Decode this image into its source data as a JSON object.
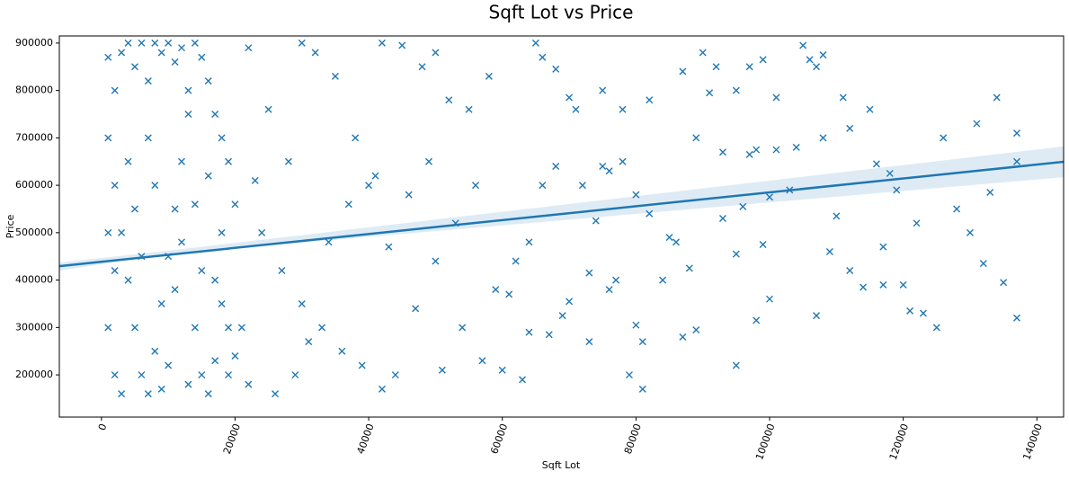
{
  "chart_data": {
    "type": "scatter",
    "title": "Sqft Lot vs Price",
    "x_label": "Sqft Lot",
    "y_label": "Price",
    "color": "#1f77b4",
    "marker": "x",
    "xlim": [
      -6300,
      144000
    ],
    "ylim": [
      111000,
      915000
    ],
    "xticks": [
      0,
      20000,
      40000,
      60000,
      80000,
      100000,
      120000,
      140000
    ],
    "yticks": [
      200000,
      300000,
      400000,
      500000,
      600000,
      700000,
      800000,
      900000
    ],
    "x": [
      1000,
      2000,
      3000,
      4000,
      5000,
      6000,
      7000,
      8000,
      9000,
      10000,
      11000,
      12000,
      13000,
      14000,
      15000,
      16000,
      17000,
      18000,
      19000,
      1000,
      2000,
      3000,
      4000,
      5000,
      6000,
      7000,
      8000,
      9000,
      10000,
      11000,
      12000,
      13000,
      14000,
      15000,
      16000,
      17000,
      18000,
      19000,
      1000,
      2000,
      3000,
      4000,
      5000,
      6000,
      7000,
      8000,
      9000,
      10000,
      11000,
      12000,
      13000,
      14000,
      15000,
      16000,
      17000,
      18000,
      19000,
      1000,
      2000,
      20000,
      20000,
      22000,
      25000,
      28000,
      30000,
      32000,
      35000,
      38000,
      40000,
      42000,
      45000,
      48000,
      50000,
      52000,
      55000,
      58000,
      24000,
      27000,
      30000,
      33000,
      36000,
      39000,
      42000,
      44000,
      47000,
      50000,
      53000,
      56000,
      59000,
      57000,
      54000,
      26000,
      29000,
      31000,
      34000,
      37000,
      41000,
      43000,
      46000,
      49000,
      51000,
      21000,
      23000,
      22000,
      65000,
      66000,
      68000,
      90000,
      92000,
      97000,
      99000,
      105000,
      106000,
      108000,
      107000,
      87000,
      111000,
      101000,
      95000,
      91000,
      75000,
      71000,
      70000,
      82000,
      78000,
      89000,
      93000,
      97000,
      98000,
      101000,
      104000,
      108000,
      112000,
      115000,
      126000,
      131000,
      134000,
      137000,
      137000,
      116000,
      118000,
      119000,
      103000,
      100000,
      96000,
      93000,
      110000,
      122000,
      128000,
      130000,
      133000,
      99000,
      95000,
      109000,
      112000,
      114000,
      117000,
      117000,
      120000,
      121000,
      123000,
      125000,
      132000,
      135000,
      137000,
      107000,
      100000,
      98000,
      95000,
      88000,
      89000,
      87000,
      81000,
      80000,
      81000,
      79000,
      85000,
      86000,
      84000,
      77000,
      76000,
      73000,
      73000,
      70000,
      69000,
      67000,
      64000,
      63000,
      60000,
      61000,
      62000,
      64000,
      66000,
      68000,
      72000,
      75000,
      76000,
      78000,
      80000,
      82000,
      74000
    ],
    "values": [
      870000,
      800000,
      880000,
      900000,
      850000,
      900000,
      820000,
      900000,
      880000,
      900000,
      860000,
      890000,
      800000,
      900000,
      870000,
      820000,
      750000,
      700000,
      650000,
      700000,
      600000,
      500000,
      400000,
      300000,
      200000,
      160000,
      250000,
      350000,
      450000,
      550000,
      650000,
      750000,
      300000,
      200000,
      160000,
      400000,
      500000,
      300000,
      300000,
      200000,
      160000,
      650000,
      550000,
      450000,
      700000,
      600000,
      170000,
      220000,
      380000,
      480000,
      180000,
      560000,
      420000,
      620000,
      230000,
      350000,
      200000,
      500000,
      420000,
      560000,
      240000,
      890000,
      760000,
      650000,
      900000,
      880000,
      830000,
      700000,
      600000,
      900000,
      895000,
      850000,
      880000,
      780000,
      760000,
      830000,
      500000,
      420000,
      350000,
      300000,
      250000,
      220000,
      170000,
      200000,
      340000,
      440000,
      520000,
      600000,
      380000,
      230000,
      300000,
      160000,
      200000,
      270000,
      480000,
      560000,
      620000,
      470000,
      580000,
      650000,
      210000,
      300000,
      610000,
      180000,
      900000,
      870000,
      845000,
      880000,
      850000,
      850000,
      865000,
      895000,
      865000,
      875000,
      850000,
      840000,
      785000,
      785000,
      800000,
      795000,
      800000,
      760000,
      785000,
      780000,
      760000,
      700000,
      670000,
      665000,
      675000,
      675000,
      680000,
      700000,
      720000,
      760000,
      700000,
      730000,
      785000,
      710000,
      650000,
      645000,
      625000,
      590000,
      590000,
      575000,
      555000,
      530000,
      535000,
      520000,
      550000,
      500000,
      585000,
      475000,
      455000,
      460000,
      420000,
      385000,
      470000,
      390000,
      390000,
      335000,
      330000,
      300000,
      435000,
      395000,
      320000,
      325000,
      360000,
      315000,
      220000,
      425000,
      295000,
      280000,
      270000,
      305000,
      170000,
      200000,
      490000,
      480000,
      400000,
      400000,
      380000,
      415000,
      270000,
      355000,
      325000,
      285000,
      290000,
      190000,
      210000,
      370000,
      440000,
      480000,
      600000,
      640000,
      600000,
      640000,
      630000,
      650000,
      580000,
      540000,
      525000
    ],
    "fit": {
      "x": [
        -6300,
        144000
      ],
      "values": [
        429400,
        649500
      ]
    },
    "band": {
      "x": [
        -6300,
        10000,
        144000
      ],
      "lower": [
        420000,
        455000,
        617000
      ],
      "upper": [
        437000,
        462000,
        682000
      ]
    }
  }
}
